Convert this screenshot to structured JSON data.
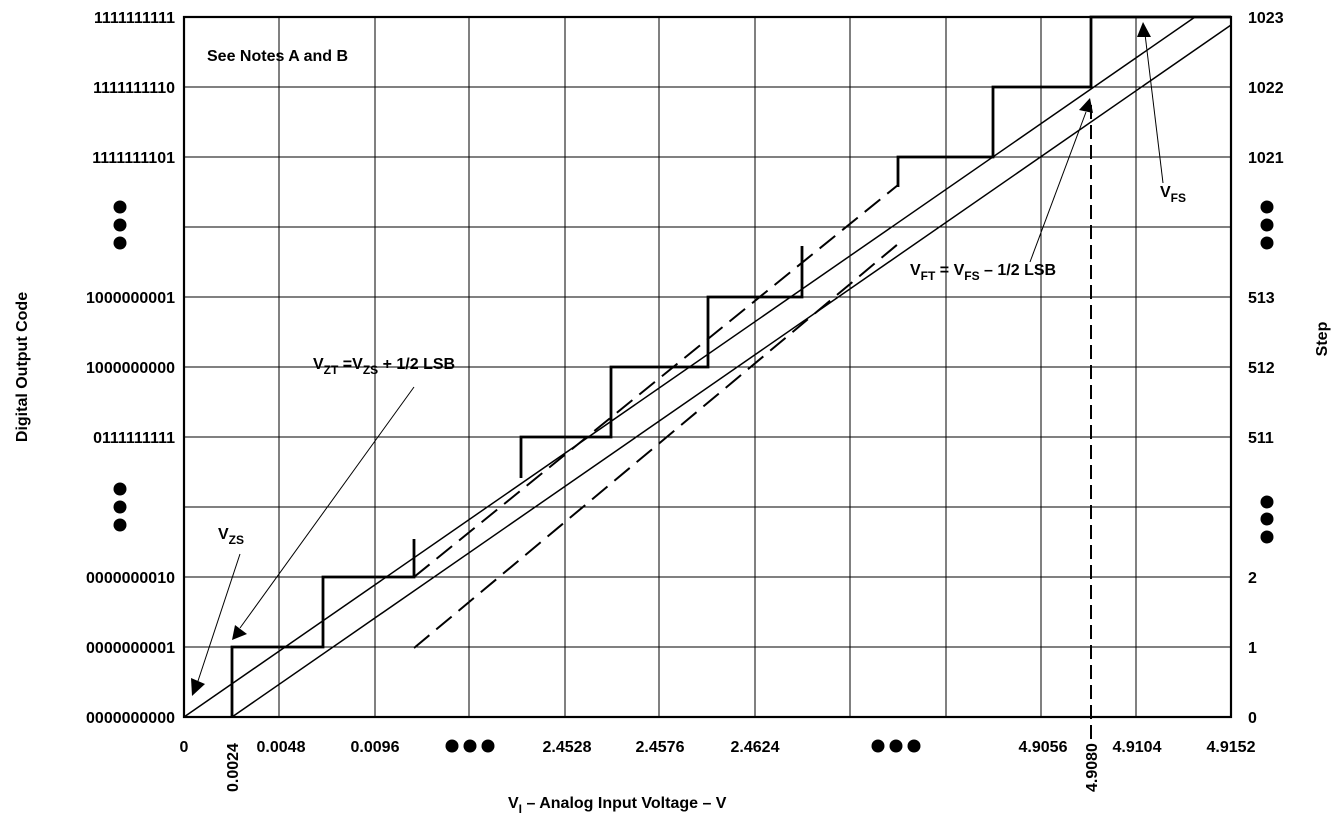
{
  "figure": {
    "note": "See Notes A and B",
    "left_axis": {
      "title": "Digital Output Code",
      "codes": [
        "1111111111",
        "1111111110",
        "1111111101",
        "1000000001",
        "1000000000",
        "0111111111",
        "0000000010",
        "0000000001",
        "0000000000"
      ]
    },
    "right_axis": {
      "title": "Step",
      "steps": [
        "1023",
        "1022",
        "1021",
        "513",
        "512",
        "511",
        "2",
        "1",
        "0"
      ]
    },
    "x_axis": {
      "title": {
        "main": "V",
        "sub": "I",
        "rest": " – Analog Input Voltage – V"
      },
      "ticks": [
        "0",
        "0.0048",
        "0.0096",
        "2.4528",
        "2.4576",
        "2.4624",
        "4.9056",
        "4.9104",
        "4.9152"
      ],
      "rotated_ticks": [
        "0.0024",
        "4.9080"
      ]
    },
    "annotations": {
      "vzs": {
        "main": "V",
        "sub": "ZS"
      },
      "vzt": {
        "p1": "V",
        "s1": "ZT",
        "p2": " =V",
        "s2": "ZS",
        "p3": " + 1/2 LSB"
      },
      "vft": {
        "p1": "V",
        "s1": "FT",
        "p2": " = V",
        "s2": "FS",
        "p3": " – 1/2 LSB"
      },
      "vfs": {
        "main": "V",
        "sub": "FS"
      }
    },
    "ellipsis_icon": "three-dots"
  }
}
